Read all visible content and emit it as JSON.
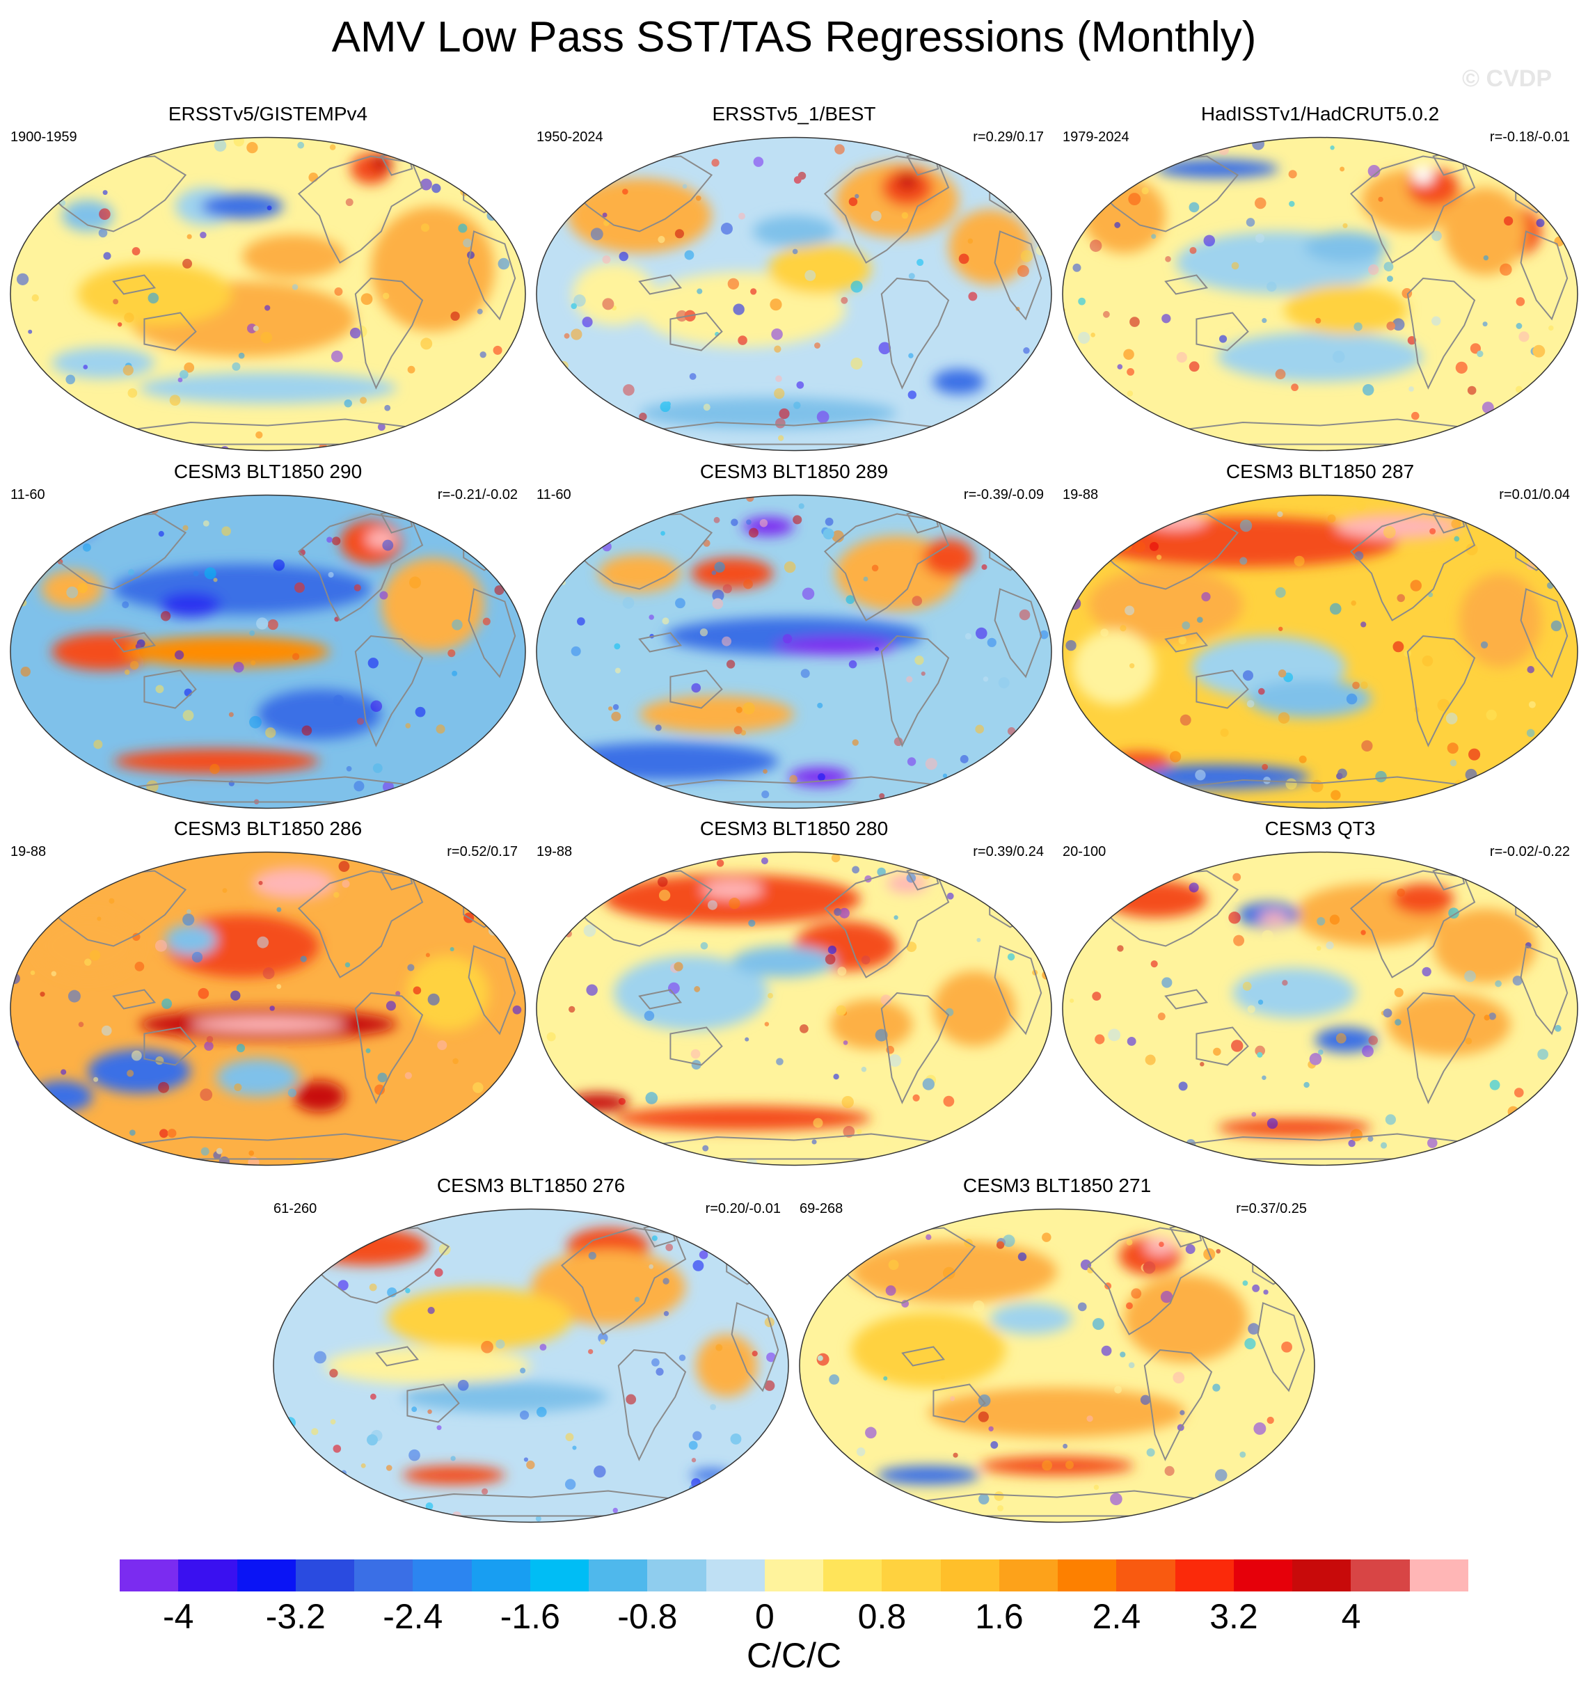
{
  "title": "AMV Low Pass SST/TAS Regressions (Monthly)",
  "watermark": "© CVDP",
  "colors": {
    "land_outline": "#8a8a8a",
    "map_border": "#333333",
    "missing": "#ffffff"
  },
  "panels": [
    {
      "title": "ERSSTv5/GISTEMPv4",
      "period": "1900-1959",
      "corr": "",
      "base_color": "#fff39c",
      "pattern": "obs1",
      "blobs": [
        [
          "#fdb045",
          0.55,
          0.38,
          0.1,
          0.07
        ],
        [
          "#fdb045",
          0.45,
          0.58,
          0.22,
          0.12
        ],
        [
          "#fdb045",
          0.82,
          0.42,
          0.12,
          0.2
        ],
        [
          "#9fd3ee",
          0.38,
          0.22,
          0.06,
          0.06
        ],
        [
          "#3a6fe6",
          0.45,
          0.22,
          0.08,
          0.04
        ],
        [
          "#7fc1ea",
          0.15,
          0.25,
          0.05,
          0.05
        ],
        [
          "#f44d1c",
          0.7,
          0.1,
          0.04,
          0.05
        ],
        [
          "#c80a0a",
          0.72,
          0.08,
          0.02,
          0.03
        ],
        [
          "#9fd3ee",
          0.5,
          0.8,
          0.25,
          0.05
        ],
        [
          "#9fd3ee",
          0.18,
          0.72,
          0.1,
          0.05
        ],
        [
          "#ffd23f",
          0.28,
          0.5,
          0.15,
          0.1
        ]
      ]
    },
    {
      "title": "ERSSTv5_1/BEST",
      "period": "1950-2024",
      "corr": "r=0.29/0.17",
      "base_color": "#bfe0f4",
      "pattern": "obs2",
      "blobs": [
        [
          "#fdb045",
          0.2,
          0.25,
          0.14,
          0.12
        ],
        [
          "#fdb045",
          0.7,
          0.2,
          0.12,
          0.12
        ],
        [
          "#f44d1c",
          0.72,
          0.16,
          0.05,
          0.06
        ],
        [
          "#c80a0a",
          0.72,
          0.14,
          0.02,
          0.03
        ],
        [
          "#fdb045",
          0.88,
          0.35,
          0.08,
          0.12
        ],
        [
          "#fff39c",
          0.4,
          0.55,
          0.2,
          0.12
        ],
        [
          "#ffd23f",
          0.55,
          0.42,
          0.1,
          0.08
        ],
        [
          "#7fc1ea",
          0.5,
          0.3,
          0.08,
          0.05
        ],
        [
          "#3a6fe6",
          0.82,
          0.78,
          0.05,
          0.04
        ],
        [
          "#7fc1ea",
          0.45,
          0.88,
          0.25,
          0.05
        ],
        [
          "#fff39c",
          0.15,
          0.5,
          0.08,
          0.1
        ]
      ]
    },
    {
      "title": "HadISSTv1/HadCRUT5.0.2",
      "period": "1979-2024",
      "corr": "r=-0.18/-0.01",
      "base_color": "#fff39c",
      "pattern": "obs3",
      "blobs": [
        [
          "#fdb045",
          0.12,
          0.25,
          0.08,
          0.12
        ],
        [
          "#fdb045",
          0.68,
          0.2,
          0.1,
          0.1
        ],
        [
          "#f44d1c",
          0.72,
          0.16,
          0.05,
          0.06
        ],
        [
          "#f44d1c",
          0.88,
          0.3,
          0.05,
          0.08
        ],
        [
          "#fdb045",
          0.82,
          0.3,
          0.08,
          0.14
        ],
        [
          "#9fd3ee",
          0.42,
          0.4,
          0.2,
          0.1
        ],
        [
          "#3a6fe6",
          0.3,
          0.1,
          0.12,
          0.03
        ],
        [
          "#7fc1ea",
          0.55,
          0.35,
          0.08,
          0.05
        ],
        [
          "#9fd3ee",
          0.5,
          0.7,
          0.2,
          0.08
        ],
        [
          "#ffffff",
          0.7,
          0.12,
          0.02,
          0.03
        ],
        [
          "#ffd23f",
          0.55,
          0.55,
          0.12,
          0.08
        ]
      ]
    },
    {
      "title": "CESM3 BLT1850 290",
      "period": "11-60",
      "corr": "r=-0.21/-0.02",
      "base_color": "#7fc1ea",
      "pattern": "m290",
      "blobs": [
        [
          "#3a6fe6",
          0.45,
          0.3,
          0.25,
          0.08
        ],
        [
          "#f44d1c",
          0.18,
          0.5,
          0.1,
          0.06
        ],
        [
          "#f44d1c",
          0.7,
          0.15,
          0.06,
          0.07
        ],
        [
          "#ffb6b6",
          0.72,
          0.14,
          0.03,
          0.03
        ],
        [
          "#ff8c00",
          0.42,
          0.5,
          0.2,
          0.05
        ],
        [
          "#2a30f0",
          0.35,
          0.35,
          0.06,
          0.04
        ],
        [
          "#fdb045",
          0.82,
          0.35,
          0.1,
          0.15
        ],
        [
          "#f44d1c",
          0.4,
          0.85,
          0.2,
          0.04
        ],
        [
          "#fdb045",
          0.12,
          0.3,
          0.06,
          0.06
        ],
        [
          "#2a30f0",
          0.1,
          0.1,
          0.06,
          0.04
        ],
        [
          "#3a6fe6",
          0.6,
          0.7,
          0.12,
          0.08
        ]
      ]
    },
    {
      "title": "CESM3 BLT1850 289",
      "period": "11-60",
      "corr": "r=-0.39/-0.09",
      "base_color": "#9fd3ee",
      "pattern": "m289",
      "blobs": [
        [
          "#3a6fe6",
          0.5,
          0.45,
          0.25,
          0.06
        ],
        [
          "#7b2cf0",
          0.58,
          0.48,
          0.12,
          0.03
        ],
        [
          "#f44d1c",
          0.38,
          0.25,
          0.08,
          0.05
        ],
        [
          "#fdb045",
          0.7,
          0.25,
          0.12,
          0.12
        ],
        [
          "#f44d1c",
          0.8,
          0.2,
          0.05,
          0.06
        ],
        [
          "#7b2cf0",
          0.45,
          0.1,
          0.05,
          0.03
        ],
        [
          "#fdb045",
          0.35,
          0.7,
          0.15,
          0.06
        ],
        [
          "#3a6fe6",
          0.25,
          0.85,
          0.22,
          0.06
        ],
        [
          "#7b2cf0",
          0.55,
          0.9,
          0.06,
          0.03
        ],
        [
          "#fdb045",
          0.2,
          0.25,
          0.08,
          0.06
        ]
      ]
    },
    {
      "title": "CESM3 BLT1850 287",
      "period": "19-88",
      "corr": "r=0.01/0.04",
      "base_color": "#ffd23f",
      "pattern": "m287",
      "blobs": [
        [
          "#f44d1c",
          0.35,
          0.15,
          0.3,
          0.08
        ],
        [
          "#ffb6b6",
          0.65,
          0.1,
          0.12,
          0.04
        ],
        [
          "#ffb6b6",
          0.22,
          0.08,
          0.06,
          0.03
        ],
        [
          "#fdb045",
          0.2,
          0.35,
          0.15,
          0.12
        ],
        [
          "#9fd3ee",
          0.4,
          0.55,
          0.15,
          0.1
        ],
        [
          "#7fc1ea",
          0.48,
          0.65,
          0.12,
          0.06
        ],
        [
          "#fff39c",
          0.1,
          0.55,
          0.08,
          0.12
        ],
        [
          "#3a6fe6",
          0.3,
          0.9,
          0.18,
          0.04
        ],
        [
          "#f44d1c",
          0.15,
          0.85,
          0.06,
          0.03
        ],
        [
          "#fdb045",
          0.85,
          0.4,
          0.08,
          0.15
        ]
      ]
    },
    {
      "title": "CESM3 BLT1850 286",
      "period": "19-88",
      "corr": "r=0.52/0.17",
      "base_color": "#fdb045",
      "pattern": "m286",
      "blobs": [
        [
          "#f44d1c",
          0.45,
          0.3,
          0.15,
          0.1
        ],
        [
          "#c80a0a",
          0.5,
          0.55,
          0.25,
          0.05
        ],
        [
          "#ffb6b6",
          0.5,
          0.55,
          0.15,
          0.025
        ],
        [
          "#ffb6b6",
          0.55,
          0.1,
          0.08,
          0.05
        ],
        [
          "#3a6fe6",
          0.25,
          0.7,
          0.1,
          0.07
        ],
        [
          "#7fc1ea",
          0.48,
          0.72,
          0.08,
          0.06
        ],
        [
          "#3a6fe6",
          0.1,
          0.78,
          0.06,
          0.05
        ],
        [
          "#c80a0a",
          0.6,
          0.78,
          0.05,
          0.05
        ],
        [
          "#7fc1ea",
          0.35,
          0.28,
          0.05,
          0.05
        ],
        [
          "#fdb045",
          0.15,
          0.3,
          0.1,
          0.1
        ],
        [
          "#ffd23f",
          0.85,
          0.45,
          0.08,
          0.12
        ]
      ]
    },
    {
      "title": "CESM3 BLT1850 280",
      "period": "19-88",
      "corr": "r=0.39/0.24",
      "base_color": "#fff39c",
      "pattern": "m280",
      "blobs": [
        [
          "#f44d1c",
          0.38,
          0.15,
          0.25,
          0.08
        ],
        [
          "#f44d1c",
          0.6,
          0.3,
          0.1,
          0.08
        ],
        [
          "#ffb6b6",
          0.38,
          0.12,
          0.06,
          0.03
        ],
        [
          "#ffb6b6",
          0.72,
          0.1,
          0.04,
          0.03
        ],
        [
          "#9fd3ee",
          0.3,
          0.45,
          0.15,
          0.12
        ],
        [
          "#7fc1ea",
          0.48,
          0.35,
          0.1,
          0.05
        ],
        [
          "#fdb045",
          0.65,
          0.55,
          0.08,
          0.08
        ],
        [
          "#c80a0a",
          0.12,
          0.8,
          0.06,
          0.03
        ],
        [
          "#f44d1c",
          0.4,
          0.85,
          0.25,
          0.04
        ],
        [
          "#fdb045",
          0.85,
          0.5,
          0.08,
          0.12
        ]
      ]
    },
    {
      "title": "CESM3 QT3",
      "period": "20-100",
      "corr": "r=-0.02/-0.22",
      "base_color": "#fff39c",
      "pattern": "qt3",
      "blobs": [
        [
          "#f44d1c",
          0.18,
          0.15,
          0.1,
          0.06
        ],
        [
          "#fdb045",
          0.6,
          0.2,
          0.15,
          0.1
        ],
        [
          "#f44d1c",
          0.7,
          0.15,
          0.06,
          0.05
        ],
        [
          "#3a6fe6",
          0.4,
          0.2,
          0.06,
          0.04
        ],
        [
          "#ffb6b6",
          0.41,
          0.21,
          0.03,
          0.02
        ],
        [
          "#9fd3ee",
          0.45,
          0.45,
          0.12,
          0.08
        ],
        [
          "#fdb045",
          0.75,
          0.55,
          0.12,
          0.1
        ],
        [
          "#3a6fe6",
          0.55,
          0.6,
          0.06,
          0.04
        ],
        [
          "#f44d1c",
          0.45,
          0.88,
          0.15,
          0.03
        ],
        [
          "#fdb045",
          0.82,
          0.3,
          0.1,
          0.12
        ]
      ]
    },
    {
      "title": "CESM3 BLT1850 276",
      "period": "61-260",
      "corr": "r=0.20/-0.01",
      "base_color": "#bfe0f4",
      "pattern": "m276",
      "blobs": [
        [
          "#f44d1c",
          0.18,
          0.12,
          0.12,
          0.06
        ],
        [
          "#f44d1c",
          0.65,
          0.12,
          0.08,
          0.06
        ],
        [
          "#fdb045",
          0.65,
          0.25,
          0.15,
          0.12
        ],
        [
          "#ffd23f",
          0.4,
          0.35,
          0.18,
          0.1
        ],
        [
          "#fff39c",
          0.3,
          0.5,
          0.2,
          0.06
        ],
        [
          "#7fc1ea",
          0.45,
          0.6,
          0.2,
          0.05
        ],
        [
          "#f44d1c",
          0.35,
          0.85,
          0.1,
          0.03
        ],
        [
          "#fdb045",
          0.88,
          0.5,
          0.06,
          0.1
        ],
        [
          "#3a6fe6",
          0.85,
          0.85,
          0.04,
          0.02
        ]
      ]
    },
    {
      "title": "CESM3 BLT1850 271",
      "period": "69-268",
      "corr": "r=0.37/0.25",
      "base_color": "#fff39c",
      "pattern": "m271",
      "blobs": [
        [
          "#fdb045",
          0.3,
          0.2,
          0.2,
          0.1
        ],
        [
          "#f44d1c",
          0.68,
          0.15,
          0.06,
          0.06
        ],
        [
          "#ffb6b6",
          0.7,
          0.12,
          0.03,
          0.03
        ],
        [
          "#fdb045",
          0.75,
          0.35,
          0.12,
          0.14
        ],
        [
          "#ffd23f",
          0.25,
          0.45,
          0.15,
          0.12
        ],
        [
          "#9fd3ee",
          0.45,
          0.35,
          0.08,
          0.05
        ],
        [
          "#f44d1c",
          0.5,
          0.82,
          0.15,
          0.03
        ],
        [
          "#3a6fe6",
          0.25,
          0.85,
          0.1,
          0.03
        ],
        [
          "#fdb045",
          0.5,
          0.65,
          0.25,
          0.08
        ]
      ]
    }
  ],
  "colorbar": {
    "colors": [
      "#7b2cf0",
      "#3a10f0",
      "#0a14f5",
      "#2a4be0",
      "#3a6fe6",
      "#2c85f0",
      "#189ef2",
      "#00bdf5",
      "#4fb8ec",
      "#8fcdee",
      "#bfe0f4",
      "#fff39c",
      "#ffe45a",
      "#ffd23f",
      "#ffbf2a",
      "#fda21a",
      "#fd8000",
      "#f95a10",
      "#fb2a0a",
      "#e6000a",
      "#c80a0a",
      "#d84545",
      "#ffb6b6"
    ],
    "tick_labels": [
      "-4",
      "-3.2",
      "-2.4",
      "-1.6",
      "-0.8",
      "0",
      "0.8",
      "1.6",
      "2.4",
      "3.2",
      "4"
    ],
    "tick_values": [
      -4,
      -3.2,
      -2.4,
      -1.6,
      -0.8,
      0,
      0.8,
      1.6,
      2.4,
      3.2,
      4
    ],
    "min": -4.4,
    "max": 4.8,
    "units": "C/C/C"
  }
}
